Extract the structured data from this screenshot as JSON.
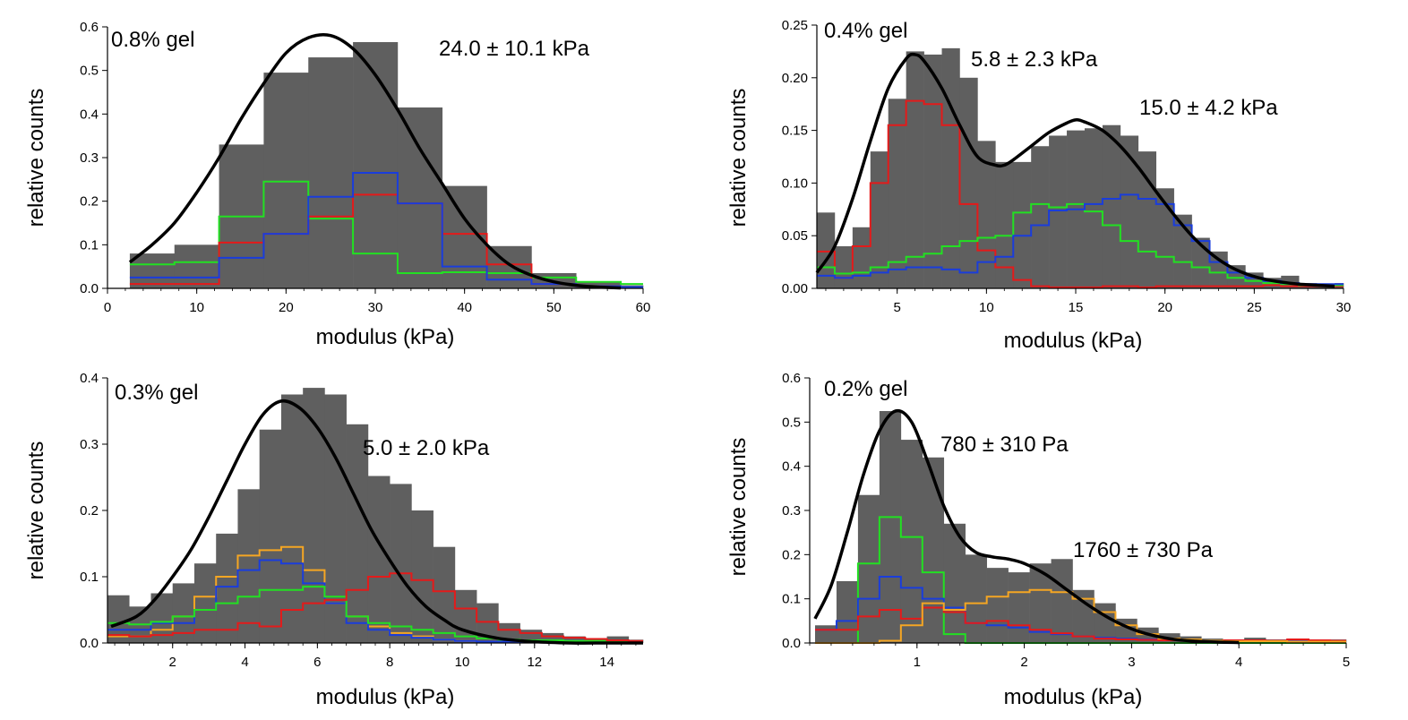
{
  "figure_title": "",
  "chart_data": [
    {
      "type": "histogram",
      "panel": "top-left",
      "gel_label": "0.8% gel",
      "annotations": [
        "24.0 ± 10.1 kPa"
      ],
      "xlabel": "modulus (kPa)",
      "ylabel": "relative counts",
      "xlim": [
        0,
        60
      ],
      "ylim": [
        0,
        0.6
      ],
      "xticks": [
        0,
        10,
        20,
        30,
        40,
        50,
        60
      ],
      "yticks": [
        0.0,
        0.1,
        0.2,
        0.3,
        0.4,
        0.5,
        0.6
      ],
      "ytick_labels": [
        "0.0",
        "0.1",
        "0.2",
        "0.3",
        "0.4",
        "0.5",
        "0.6"
      ],
      "bin_edges": [
        2.5,
        7.5,
        12.5,
        17.5,
        22.5,
        27.5,
        32.5,
        37.5,
        42.5,
        47.5,
        52.5,
        57.5,
        60
      ],
      "bars": {
        "name": "total",
        "color": "#5f5f5f",
        "values": [
          0.08,
          0.1,
          0.33,
          0.495,
          0.53,
          0.565,
          0.415,
          0.235,
          0.097,
          0.035,
          0.015,
          0.007
        ]
      },
      "series": [
        {
          "name": "green",
          "color": "#22e022",
          "values": [
            0.055,
            0.06,
            0.165,
            0.245,
            0.16,
            0.08,
            0.035,
            0.037,
            0.035,
            0.025,
            0.015,
            0.01
          ]
        },
        {
          "name": "red",
          "color": "#e41a1a",
          "values": [
            0.01,
            0.01,
            0.105,
            0.125,
            0.165,
            0.215,
            0.195,
            0.125,
            0.055,
            0.01,
            0.005,
            0.003
          ]
        },
        {
          "name": "blue",
          "color": "#1a3ddb",
          "values": [
            0.025,
            0.025,
            0.07,
            0.125,
            0.21,
            0.265,
            0.195,
            0.05,
            0.02,
            0.01,
            0.005,
            0.003
          ]
        }
      ],
      "fit": {
        "color": "#000000",
        "x": [
          2.5,
          5,
          7.5,
          10,
          12.5,
          15,
          17.5,
          20,
          22.5,
          25,
          27.5,
          30,
          32.5,
          35,
          37.5,
          40,
          42.5,
          45,
          47.5,
          50,
          52.5,
          55,
          57.5
        ],
        "y": [
          0.06,
          0.1,
          0.15,
          0.22,
          0.3,
          0.39,
          0.47,
          0.54,
          0.575,
          0.58,
          0.55,
          0.49,
          0.41,
          0.32,
          0.24,
          0.16,
          0.1,
          0.055,
          0.03,
          0.015,
          0.007,
          0.003,
          0.001
        ]
      }
    },
    {
      "type": "histogram",
      "panel": "top-right",
      "gel_label": "0.4% gel",
      "annotations": [
        "5.8 ± 2.3 kPa",
        "15.0 ± 4.2 kPa"
      ],
      "xlabel": "modulus (kPa)",
      "ylabel": "relative counts",
      "xlim": [
        0.5,
        30
      ],
      "ylim": [
        0,
        0.25
      ],
      "xticks": [
        5,
        10,
        15,
        20,
        25,
        30
      ],
      "yticks": [
        0.0,
        0.05,
        0.1,
        0.15,
        0.2,
        0.25
      ],
      "ytick_labels": [
        "0.00",
        "0.05",
        "0.10",
        "0.15",
        "0.20",
        "0.25"
      ],
      "bin_edges": [
        0.5,
        1.5,
        2.5,
        3.5,
        4.5,
        5.5,
        6.5,
        7.5,
        8.5,
        9.5,
        10.5,
        11.5,
        12.5,
        13.5,
        14.5,
        15.5,
        16.5,
        17.5,
        18.5,
        19.5,
        20.5,
        21.5,
        22.5,
        23.5,
        24.5,
        25.5,
        26.5,
        27.5,
        28.5,
        29.5,
        30
      ],
      "bars": {
        "name": "total",
        "color": "#5f5f5f",
        "values": [
          0.072,
          0.04,
          0.058,
          0.13,
          0.18,
          0.225,
          0.222,
          0.228,
          0.2,
          0.14,
          0.12,
          0.12,
          0.135,
          0.145,
          0.15,
          0.152,
          0.155,
          0.145,
          0.13,
          0.095,
          0.07,
          0.048,
          0.035,
          0.022,
          0.015,
          0.01,
          0.012,
          0.005,
          0.004,
          0.005
        ]
      },
      "series": [
        {
          "name": "red",
          "color": "#e41a1a",
          "values": [
            0.035,
            0.01,
            0.04,
            0.1,
            0.155,
            0.178,
            0.175,
            0.155,
            0.08,
            0.036,
            0.02,
            0.008,
            0.002,
            0.001,
            0.001,
            0.001,
            0.002,
            0.002,
            0.001,
            0.002,
            0.002,
            0.002,
            0.002,
            0.002,
            0.002,
            0.003,
            0.002,
            0.002,
            0.002,
            0.002
          ]
        },
        {
          "name": "green",
          "color": "#22e022",
          "values": [
            0.02,
            0.014,
            0.015,
            0.02,
            0.025,
            0.03,
            0.033,
            0.04,
            0.045,
            0.048,
            0.05,
            0.072,
            0.08,
            0.077,
            0.08,
            0.073,
            0.06,
            0.045,
            0.035,
            0.03,
            0.025,
            0.02,
            0.015,
            0.01,
            0.007,
            0.005,
            0.004,
            0.003,
            0.003,
            0.003
          ]
        },
        {
          "name": "blue",
          "color": "#1a3ddb",
          "values": [
            0.012,
            0.01,
            0.012,
            0.015,
            0.018,
            0.02,
            0.02,
            0.018,
            0.015,
            0.025,
            0.03,
            0.05,
            0.06,
            0.074,
            0.075,
            0.08,
            0.085,
            0.089,
            0.085,
            0.08,
            0.06,
            0.045,
            0.025,
            0.015,
            0.01,
            0.007,
            0.005,
            0.004,
            0.004,
            0.004
          ]
        }
      ],
      "fit": {
        "color": "#000000",
        "x": [
          0.5,
          1.5,
          2.5,
          3.5,
          4.5,
          5.5,
          6,
          6.5,
          7.5,
          8.5,
          9.5,
          10.5,
          11,
          11.5,
          12.5,
          13.5,
          14.5,
          15,
          15.5,
          16.5,
          17.5,
          18.5,
          19.5,
          20.5,
          21.5,
          22.5,
          23.5,
          24.5,
          25.5,
          26.5,
          27.5,
          28.5,
          29.5
        ],
        "y": [
          0.015,
          0.04,
          0.085,
          0.14,
          0.19,
          0.218,
          0.222,
          0.216,
          0.19,
          0.155,
          0.125,
          0.117,
          0.117,
          0.122,
          0.135,
          0.148,
          0.157,
          0.16,
          0.158,
          0.15,
          0.135,
          0.115,
          0.092,
          0.07,
          0.05,
          0.034,
          0.022,
          0.014,
          0.009,
          0.006,
          0.004,
          0.003,
          0.002
        ]
      }
    },
    {
      "type": "histogram",
      "panel": "bottom-left",
      "gel_label": "0.3% gel",
      "annotations": [
        "5.0 ± 2.0 kPa"
      ],
      "xlabel": "modulus (kPa)",
      "ylabel": "relative counts",
      "xlim": [
        0.2,
        15
      ],
      "ylim": [
        0,
        0.4
      ],
      "xticks": [
        2,
        4,
        6,
        8,
        10,
        12,
        14
      ],
      "yticks": [
        0.0,
        0.1,
        0.2,
        0.3,
        0.4
      ],
      "ytick_labels": [
        "0.0",
        "0.1",
        "0.2",
        "0.3",
        "0.4"
      ],
      "bin_edges": [
        0.2,
        0.8,
        1.4,
        2.0,
        2.6,
        3.2,
        3.8,
        4.4,
        5.0,
        5.6,
        6.2,
        6.8,
        7.4,
        8.0,
        8.6,
        9.2,
        9.8,
        10.4,
        11.0,
        11.6,
        12.2,
        12.8,
        13.4,
        14.0,
        14.6,
        15
      ],
      "bars": {
        "name": "total",
        "color": "#5f5f5f",
        "values": [
          0.072,
          0.055,
          0.075,
          0.09,
          0.12,
          0.165,
          0.232,
          0.322,
          0.375,
          0.385,
          0.375,
          0.33,
          0.252,
          0.24,
          0.2,
          0.145,
          0.08,
          0.06,
          0.03,
          0.02,
          0.015,
          0.01,
          0.007,
          0.01,
          0.005
        ]
      },
      "series": [
        {
          "name": "orange",
          "color": "#f5a623",
          "values": [
            0.01,
            0.01,
            0.02,
            0.04,
            0.07,
            0.1,
            0.132,
            0.14,
            0.145,
            0.11,
            0.06,
            0.04,
            0.025,
            0.015,
            0.01,
            0.005,
            0.003,
            0.002,
            0.001,
            0.001,
            0.001,
            0.001,
            0.001,
            0.001,
            0.001
          ]
        },
        {
          "name": "blue",
          "color": "#1a3ddb",
          "values": [
            0.02,
            0.02,
            0.03,
            0.03,
            0.05,
            0.085,
            0.11,
            0.125,
            0.12,
            0.09,
            0.06,
            0.03,
            0.02,
            0.012,
            0.008,
            0.005,
            0.003,
            0.002,
            0.002,
            0.002,
            0.002,
            0.003,
            0.002,
            0.002,
            0.002
          ]
        },
        {
          "name": "green",
          "color": "#22e022",
          "values": [
            0.03,
            0.028,
            0.032,
            0.04,
            0.05,
            0.06,
            0.07,
            0.08,
            0.08,
            0.085,
            0.07,
            0.04,
            0.03,
            0.025,
            0.02,
            0.015,
            0.01,
            0.007,
            0.005,
            0.004,
            0.004,
            0.003,
            0.003,
            0.003,
            0.002
          ]
        },
        {
          "name": "red",
          "color": "#e41a1a",
          "values": [
            0.012,
            0.01,
            0.012,
            0.015,
            0.02,
            0.02,
            0.03,
            0.025,
            0.05,
            0.06,
            0.065,
            0.08,
            0.1,
            0.105,
            0.095,
            0.078,
            0.052,
            0.032,
            0.02,
            0.015,
            0.01,
            0.008,
            0.006,
            0.004,
            0.003
          ]
        }
      ],
      "fit": {
        "color": "#000000",
        "x": [
          0.3,
          1,
          1.5,
          2,
          2.5,
          3,
          3.5,
          4,
          4.5,
          5,
          5.5,
          6,
          6.5,
          7,
          7.5,
          8,
          8.5,
          9,
          9.5,
          10,
          11,
          12,
          13,
          14,
          15
        ],
        "y": [
          0.025,
          0.04,
          0.065,
          0.1,
          0.14,
          0.19,
          0.245,
          0.3,
          0.345,
          0.365,
          0.355,
          0.325,
          0.28,
          0.225,
          0.17,
          0.125,
          0.085,
          0.055,
          0.035,
          0.02,
          0.007,
          0.002,
          0.0,
          0.0,
          0.0
        ]
      }
    },
    {
      "type": "histogram",
      "panel": "bottom-right",
      "gel_label": "0.2% gel",
      "annotations": [
        "780 ± 310 Pa",
        "1760 ± 730 Pa"
      ],
      "xlabel": "modulus (kPa)",
      "ylabel": "relative counts",
      "xlim": [
        0.0,
        5.0
      ],
      "ylim": [
        0,
        0.6
      ],
      "xticks": [
        1,
        2,
        3,
        4,
        5
      ],
      "yticks": [
        0.0,
        0.1,
        0.2,
        0.3,
        0.4,
        0.5,
        0.6
      ],
      "ytick_labels": [
        "0.0",
        "0.1",
        "0.2",
        "0.3",
        "0.4",
        "0.5",
        "0.6"
      ],
      "bin_edges": [
        0.05,
        0.25,
        0.45,
        0.65,
        0.85,
        1.05,
        1.25,
        1.45,
        1.65,
        1.85,
        2.05,
        2.25,
        2.45,
        2.65,
        2.85,
        3.05,
        3.25,
        3.45,
        3.65,
        3.85,
        4.05,
        4.25,
        4.45,
        4.65,
        4.85,
        5.0
      ],
      "bars": {
        "name": "total",
        "color": "#5f5f5f",
        "values": [
          0.04,
          0.14,
          0.335,
          0.525,
          0.46,
          0.42,
          0.27,
          0.2,
          0.17,
          0.16,
          0.18,
          0.19,
          0.12,
          0.09,
          0.055,
          0.035,
          0.022,
          0.015,
          0.01,
          0.008,
          0.012,
          0.008,
          0.01,
          0.008,
          0.008
        ]
      },
      "series": [
        {
          "name": "green",
          "color": "#22e022",
          "values": [
            0.0,
            0.0,
            0.18,
            0.285,
            0.24,
            0.16,
            0.02,
            0.0,
            0.0,
            0.0,
            0.0,
            0.0,
            0.0,
            0.0,
            0.0,
            0.0,
            0.0,
            0.0,
            0.0,
            0.0,
            0.0,
            0.0,
            0.0,
            0.0,
            0.0
          ]
        },
        {
          "name": "blue",
          "color": "#1a3ddb",
          "values": [
            0.03,
            0.05,
            0.1,
            0.15,
            0.125,
            0.1,
            0.08,
            0.045,
            0.04,
            0.035,
            0.025,
            0.02,
            0.015,
            0.012,
            0.01,
            0.008,
            0.006,
            0.005,
            0.005,
            0.005,
            0.005,
            0.004,
            0.004,
            0.003,
            0.003
          ]
        },
        {
          "name": "red",
          "color": "#e41a1a",
          "values": [
            0.03,
            0.03,
            0.06,
            0.075,
            0.055,
            0.08,
            0.07,
            0.045,
            0.05,
            0.04,
            0.03,
            0.022,
            0.015,
            0.01,
            0.008,
            0.007,
            0.006,
            0.005,
            0.005,
            0.006,
            0.006,
            0.005,
            0.008,
            0.006,
            0.005
          ]
        },
        {
          "name": "orange",
          "color": "#f5a623",
          "values": [
            0.0,
            0.0,
            0.0,
            0.005,
            0.04,
            0.09,
            0.075,
            0.09,
            0.105,
            0.115,
            0.12,
            0.115,
            0.1,
            0.07,
            0.04,
            0.02,
            0.01,
            0.008,
            0.005,
            0.004,
            0.004,
            0.004,
            0.003,
            0.003,
            0.003
          ]
        }
      ],
      "fit": {
        "color": "#000000",
        "x": [
          0.05,
          0.2,
          0.35,
          0.5,
          0.65,
          0.8,
          0.95,
          1.1,
          1.25,
          1.4,
          1.55,
          1.7,
          1.85,
          2.0,
          2.2,
          2.4,
          2.6,
          2.8,
          3.0,
          3.2,
          3.4,
          3.6,
          3.8,
          4.0
        ],
        "y": [
          0.055,
          0.13,
          0.25,
          0.38,
          0.48,
          0.525,
          0.5,
          0.41,
          0.31,
          0.24,
          0.205,
          0.195,
          0.19,
          0.18,
          0.155,
          0.12,
          0.085,
          0.055,
          0.032,
          0.017,
          0.008,
          0.004,
          0.002,
          0.001
        ]
      }
    }
  ]
}
